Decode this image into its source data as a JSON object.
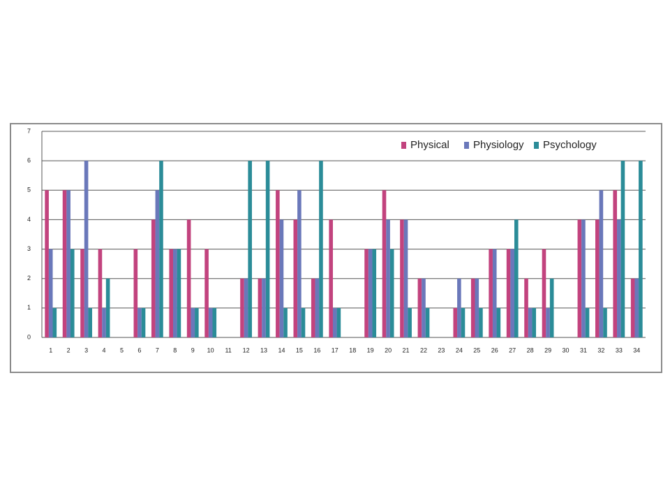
{
  "chart_data": {
    "type": "bar",
    "categories": [
      "1",
      "2",
      "3",
      "4",
      "5",
      "6",
      "7",
      "8",
      "9",
      "10",
      "11",
      "12",
      "13",
      "14",
      "15",
      "16",
      "17",
      "18",
      "19",
      "20",
      "21",
      "22",
      "23",
      "24",
      "25",
      "26",
      "27",
      "28",
      "29",
      "30",
      "31",
      "32",
      "33",
      "34"
    ],
    "series": [
      {
        "name": "Physical",
        "color": "#c2437e",
        "values": [
          5,
          5,
          3,
          3,
          0,
          3,
          4,
          3,
          4,
          3,
          0,
          2,
          2,
          5,
          4,
          2,
          4,
          0,
          3,
          5,
          4,
          2,
          0,
          1,
          2,
          3,
          3,
          2,
          3,
          0,
          4,
          4,
          5,
          2
        ]
      },
      {
        "name": "Physiology",
        "color": "#6a78ba",
        "values": [
          3,
          5,
          6,
          1,
          0,
          1,
          5,
          3,
          1,
          1,
          0,
          2,
          2,
          4,
          5,
          2,
          1,
          0,
          3,
          4,
          4,
          2,
          0,
          2,
          2,
          3,
          3,
          1,
          1,
          0,
          4,
          5,
          4,
          2
        ]
      },
      {
        "name": "Psychology",
        "color": "#2b8c98",
        "values": [
          1,
          3,
          1,
          2,
          0,
          1,
          6,
          3,
          1,
          1,
          0,
          6,
          6,
          1,
          1,
          6,
          1,
          0,
          3,
          3,
          1,
          1,
          0,
          1,
          1,
          1,
          4,
          1,
          2,
          0,
          1,
          1,
          6,
          6
        ]
      }
    ],
    "ylim": [
      0,
      7
    ],
    "yticks": [
      0,
      1,
      2,
      3,
      4,
      5,
      6,
      7
    ],
    "grid": true,
    "legend": "top-right"
  }
}
